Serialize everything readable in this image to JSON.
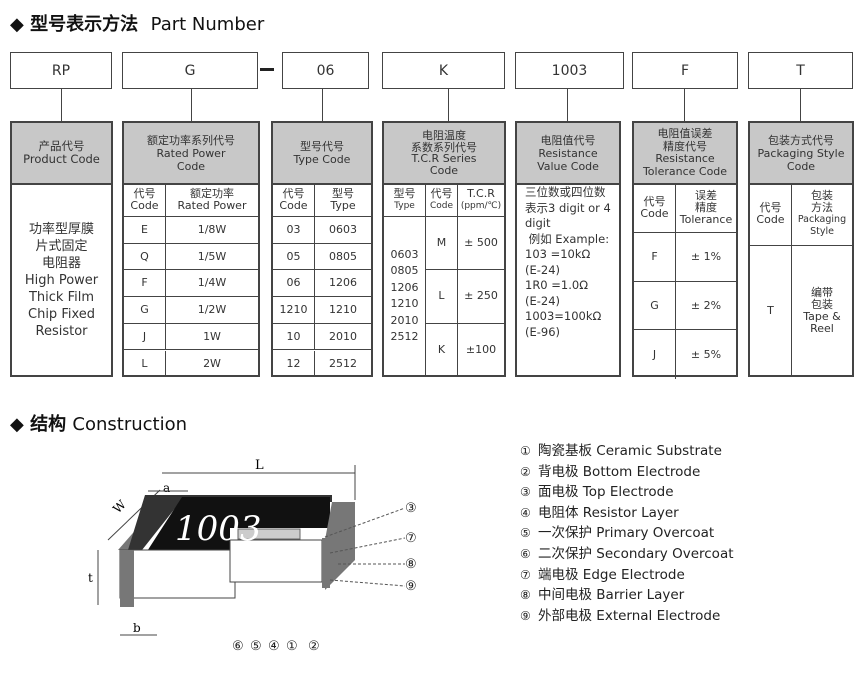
{
  "part_number": {
    "title_cn": "◆ 型号表示方法",
    "title_en": "Part Number",
    "codes": [
      "RP",
      "G",
      "06",
      "K",
      "1003",
      "F",
      "T"
    ],
    "dash": "—"
  },
  "product": {
    "h1": "产品代号",
    "h2": "Product Code",
    "body_cn": [
      "功率型厚膜",
      "片式固定",
      "电阻器"
    ],
    "body_en": [
      "High Power",
      "Thick Film",
      "Chip Fixed",
      "Resistor"
    ]
  },
  "power": {
    "h1": "额定功率系列代号",
    "h2": "Rated Power",
    "h3": "Code",
    "col1": [
      "代号",
      "Code"
    ],
    "col2": [
      "额定功率",
      "Rated Power"
    ],
    "rows": [
      [
        "E",
        "1/8W"
      ],
      [
        "Q",
        "1/5W"
      ],
      [
        "F",
        "1/4W"
      ],
      [
        "G",
        "1/2W"
      ],
      [
        "J",
        "1W"
      ],
      [
        "L",
        "2W"
      ]
    ]
  },
  "type": {
    "h1": "型号代号",
    "h2": "Type Code",
    "col1": [
      "代号",
      "Code"
    ],
    "col2": [
      "型号",
      "Type"
    ],
    "rows": [
      [
        "03",
        "0603"
      ],
      [
        "05",
        "0805"
      ],
      [
        "06",
        "1206"
      ],
      [
        "1210",
        "1210"
      ],
      [
        "10",
        "2010"
      ],
      [
        "12",
        "2512"
      ]
    ]
  },
  "tcr": {
    "h1": "电阻温度",
    "h2": "系数系列代号",
    "h3": "T.C.R Series",
    "h4": "Code",
    "col1": [
      "型号",
      "Type"
    ],
    "col2": [
      "代号",
      "Code"
    ],
    "col3": [
      "T.C.R",
      "(ppm/℃)"
    ],
    "types": [
      "0603",
      "0805",
      "1206",
      "1210",
      "2010",
      "2512"
    ],
    "rows": [
      [
        "M",
        "± 500"
      ],
      [
        "L",
        "± 250"
      ],
      [
        "K",
        "±100"
      ]
    ]
  },
  "value": {
    "h1": "电阻值代号",
    "h2": "Resistance",
    "h3": "Value Code",
    "lines": [
      "三位数或四位数",
      "表示3 digit or 4",
      "digit",
      " 例如 Example:",
      "103 =10kΩ",
      "(E-24)",
      "1R0 =1.0Ω",
      "(E-24)",
      "1003=100kΩ",
      "(E-96)"
    ]
  },
  "tolerance": {
    "h1": "电阻值误差",
    "h2": "精度代号",
    "h3": "Resistance",
    "h4": "Tolerance Code",
    "col1": [
      "代号",
      "Code"
    ],
    "col2": [
      "误差",
      "精度",
      "Tolerance"
    ],
    "rows": [
      [
        "F",
        "± 1%"
      ],
      [
        "G",
        "± 2%"
      ],
      [
        "J",
        "± 5%"
      ]
    ]
  },
  "packaging": {
    "h1": "包装方式代号",
    "h2": "Packaging Style",
    "h3": "Code",
    "col1": [
      "代号",
      "Code"
    ],
    "col2": [
      "包装",
      "方法",
      "Packaging",
      "Style"
    ],
    "code": "T",
    "desc": [
      "编带",
      "包装",
      "Tape  &",
      "Reel"
    ]
  },
  "construction": {
    "title_cn": "◆ 结构",
    "title_en": "Construction",
    "chip_marking": "1003",
    "dims": {
      "L": "L",
      "a": "a",
      "W": "W",
      "t": "t",
      "b": "b"
    },
    "legend": [
      [
        "①",
        "陶瓷基板",
        "Ceramic Substrate"
      ],
      [
        "②",
        "背电极",
        "Bottom Electrode"
      ],
      [
        "③",
        "面电极",
        "Top Electrode"
      ],
      [
        "④",
        "电阻体",
        "Resistor Layer"
      ],
      [
        "⑤",
        "一次保护",
        "Primary Overcoat"
      ],
      [
        "⑥",
        "二次保护",
        "Secondary Overcoat"
      ],
      [
        "⑦",
        "端电极",
        "Edge Electrode"
      ],
      [
        "⑧",
        "中间电极",
        "Barrier Layer"
      ],
      [
        "⑨",
        "外部电极",
        "External Electrode"
      ]
    ]
  }
}
